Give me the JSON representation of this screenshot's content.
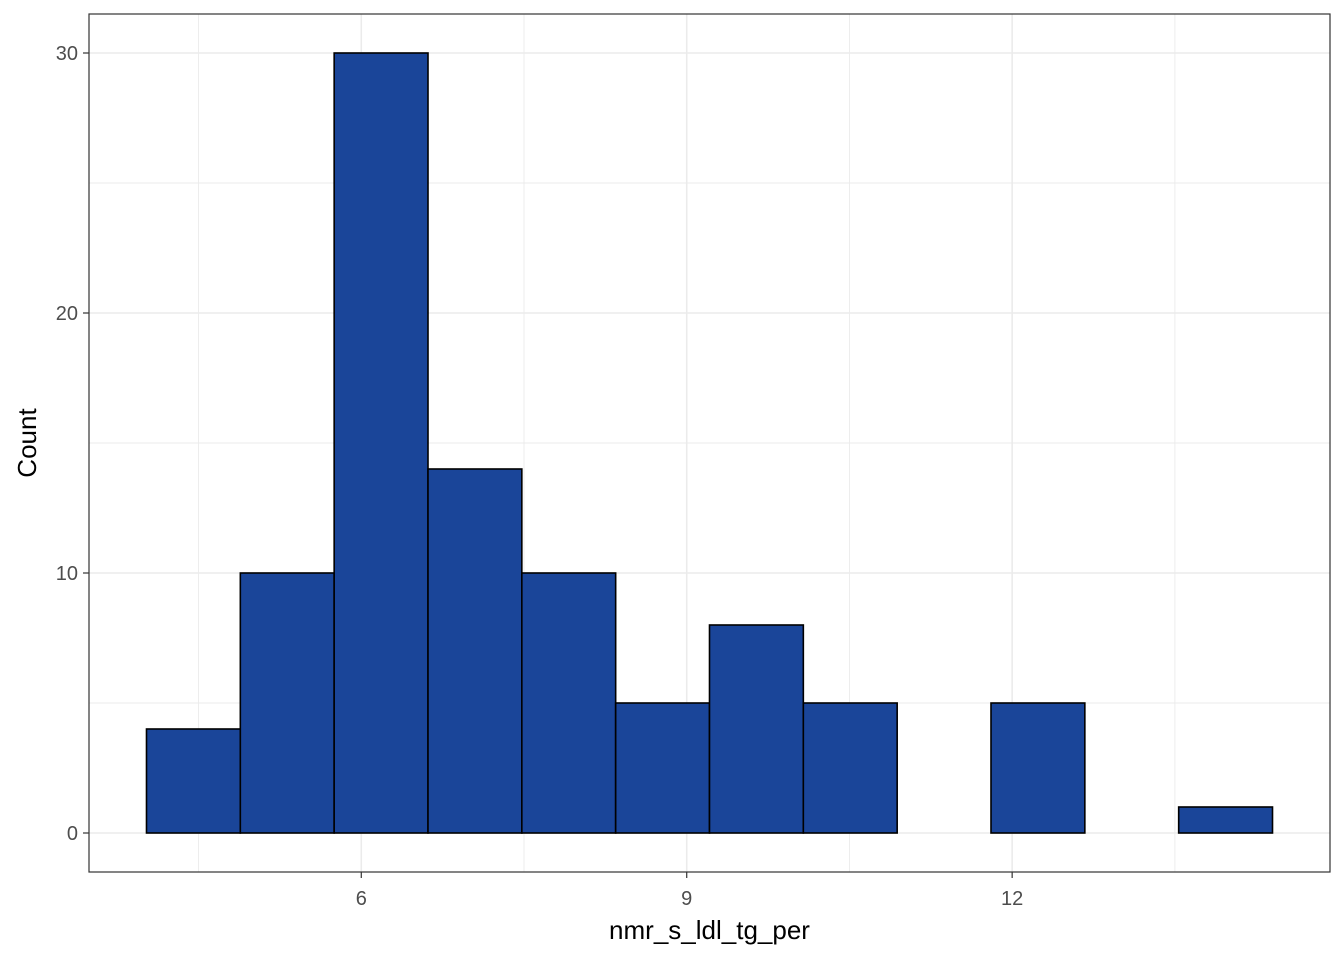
{
  "chart_data": {
    "type": "bar",
    "subtype": "histogram",
    "xlabel": "nmr_s_ldl_tg_per",
    "ylabel": "Count",
    "bin_width": 0.865,
    "bins": [
      {
        "x0": 4.02,
        "x1": 4.885,
        "count": 4
      },
      {
        "x0": 4.885,
        "x1": 5.75,
        "count": 10
      },
      {
        "x0": 5.75,
        "x1": 6.615,
        "count": 30
      },
      {
        "x0": 6.615,
        "x1": 7.48,
        "count": 14
      },
      {
        "x0": 7.48,
        "x1": 8.345,
        "count": 10
      },
      {
        "x0": 8.345,
        "x1": 9.21,
        "count": 5
      },
      {
        "x0": 9.21,
        "x1": 10.075,
        "count": 8
      },
      {
        "x0": 10.075,
        "x1": 10.94,
        "count": 5
      },
      {
        "x0": 10.94,
        "x1": 11.805,
        "count": 0
      },
      {
        "x0": 11.805,
        "x1": 12.67,
        "count": 5
      },
      {
        "x0": 12.67,
        "x1": 13.535,
        "count": 0
      },
      {
        "x0": 13.535,
        "x1": 14.4,
        "count": 1
      }
    ],
    "xlim": [
      3.49,
      14.93
    ],
    "ylim": [
      -1.5,
      31.5
    ],
    "xticks": [
      6,
      9,
      12
    ],
    "xtick_labels": [
      "6",
      "9",
      "12"
    ],
    "yticks": [
      0,
      10,
      20,
      30
    ],
    "ytick_labels": [
      "0",
      "10",
      "20",
      "30"
    ],
    "grid": true,
    "legend": "none",
    "colors": {
      "bar_fill": "#1a4599",
      "bar_edge": "#000000",
      "grid": "#ebebeb",
      "panel_border": "#333333",
      "tick_text": "#4d4d4d"
    }
  }
}
